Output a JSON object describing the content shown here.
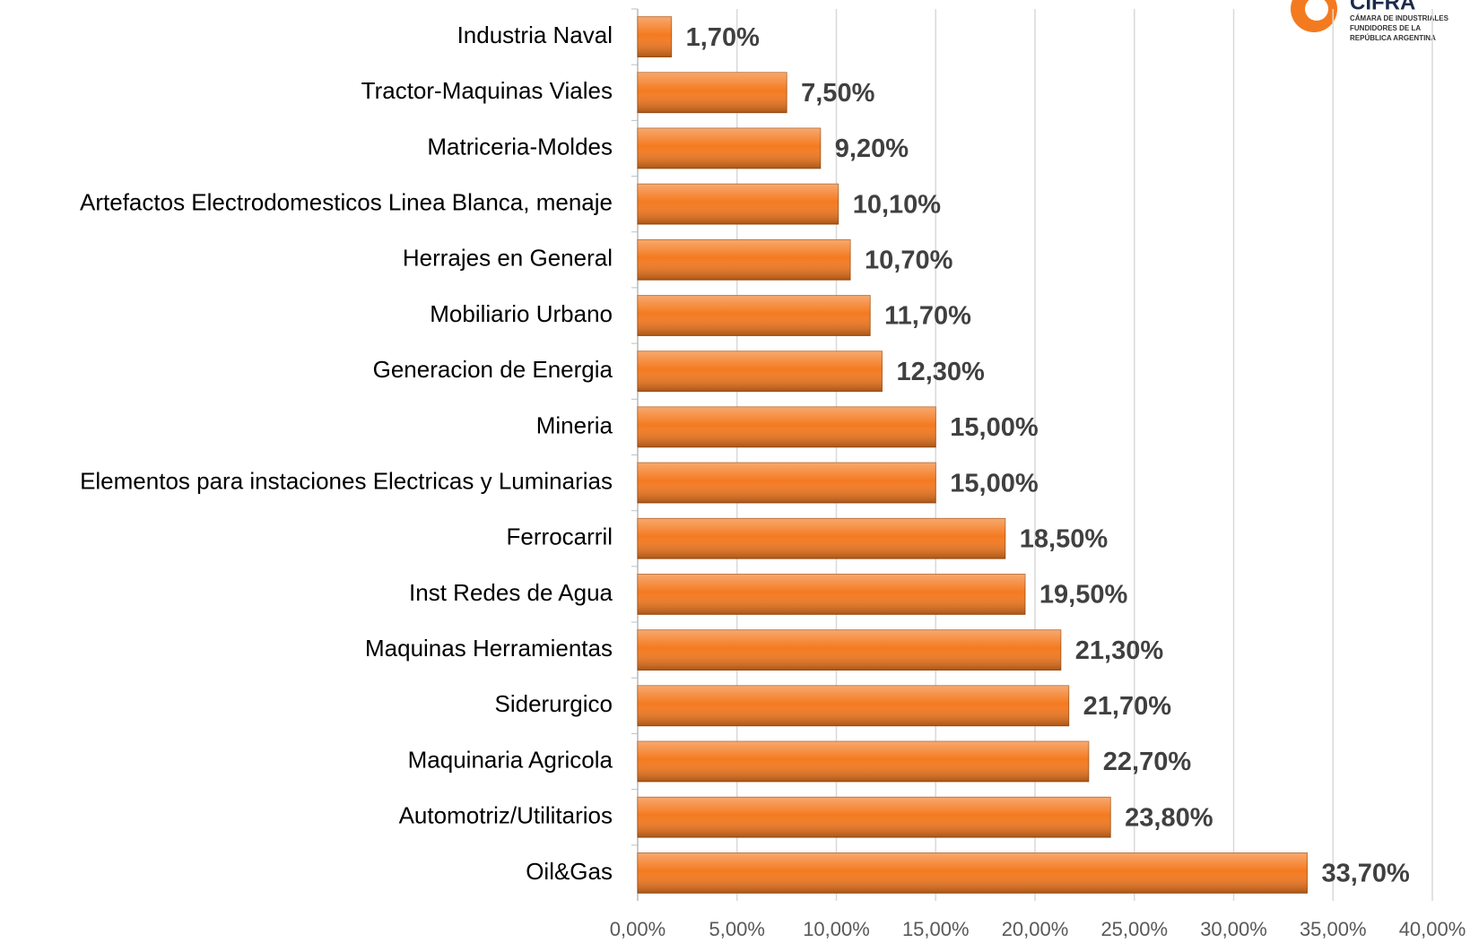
{
  "chart_data": {
    "type": "hbar",
    "categories": [
      "Industria Naval",
      "Tractor-Maquinas Viales",
      "Matriceria-Moldes",
      "Artefactos Electrodomesticos Linea Blanca, menaje",
      "Herrajes en General",
      "Mobiliario Urbano",
      "Generacion de Energia",
      "Mineria",
      "Elementos para instaciones Electricas y Luminarias",
      "Ferrocarril",
      "Inst Redes de Agua",
      "Maquinas Herramientas",
      "Siderurgico",
      "Maquinaria Agricola",
      "Automotriz/Utilitarios",
      "Oil&Gas"
    ],
    "values": [
      1.7,
      7.5,
      9.2,
      10.1,
      10.7,
      11.7,
      12.3,
      15.0,
      15.0,
      18.5,
      19.5,
      21.3,
      21.7,
      22.7,
      23.8,
      33.7
    ],
    "value_labels": [
      "1,70%",
      "7,50%",
      "9,20%",
      "10,10%",
      "10,70%",
      "11,70%",
      "12,30%",
      "15,00%",
      "15,00%",
      "18,50%",
      "19,50%",
      "21,30%",
      "21,70%",
      "22,70%",
      "23,80%",
      "33,70%"
    ],
    "color": "#f47a20",
    "xlim": [
      0,
      40
    ],
    "xticks": [
      {
        "value": 0,
        "label": "0,00%"
      },
      {
        "value": 5,
        "label": "5,00%"
      },
      {
        "value": 10,
        "label": "10,00%"
      },
      {
        "value": 15,
        "label": "15,00%"
      },
      {
        "value": 20,
        "label": "20,00%"
      },
      {
        "value": 25,
        "label": "25,00%"
      },
      {
        "value": 30,
        "label": "30,00%"
      },
      {
        "value": 35,
        "label": "35,00%"
      },
      {
        "value": 40,
        "label": "40,00%"
      }
    ],
    "grid": true
  },
  "logo": {
    "name": "CIFRA",
    "line1": "CÁMARA DE INDUSTRIALES",
    "line2": "FUNDIDORES DE LA",
    "line3": "REPÚBLICA ARGENTINA"
  }
}
